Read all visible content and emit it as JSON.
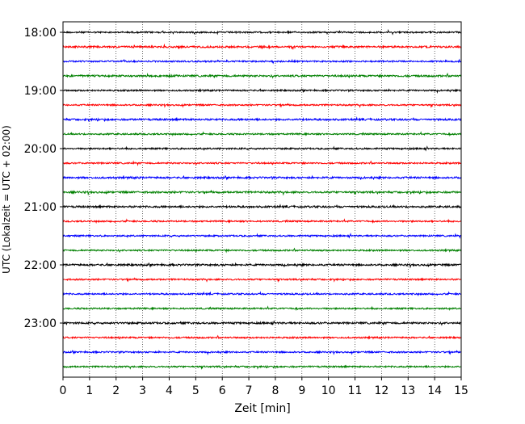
{
  "chart_data": {
    "type": "line",
    "title": "",
    "xlabel": "Zeit  [min]",
    "ylabel": "UTC (Lokalzeit = UTC + 02:00)",
    "xlim": [
      0,
      15
    ],
    "x_ticks": [
      "0",
      "1",
      "2",
      "3",
      "4",
      "5",
      "6",
      "7",
      "8",
      "9",
      "10",
      "11",
      "12",
      "13",
      "14",
      "15"
    ],
    "y_ticks": [
      "18:00",
      "19:00",
      "20:00",
      "21:00",
      "22:00",
      "23:00"
    ],
    "y_range": [
      "18:00",
      "24:00"
    ],
    "trace_interval_minutes": 15,
    "grid": "vertical dotted lines at each minute",
    "colors": [
      "#000000",
      "#ff0000",
      "#0000ff",
      "#008000"
    ],
    "series": [
      {
        "start": "18:00",
        "color": "#000000",
        "amplitude": 0.05
      },
      {
        "start": "18:15",
        "color": "#ff0000",
        "amplitude": 0.06
      },
      {
        "start": "18:30",
        "color": "#0000ff",
        "amplitude": 0.05
      },
      {
        "start": "18:45",
        "color": "#008000",
        "amplitude": 0.06
      },
      {
        "start": "19:00",
        "color": "#000000",
        "amplitude": 0.05
      },
      {
        "start": "19:15",
        "color": "#ff0000",
        "amplitude": 0.05
      },
      {
        "start": "19:30",
        "color": "#0000ff",
        "amplitude": 0.06
      },
      {
        "start": "19:45",
        "color": "#008000",
        "amplitude": 0.05
      },
      {
        "start": "20:00",
        "color": "#000000",
        "amplitude": 0.05
      },
      {
        "start": "20:15",
        "color": "#ff0000",
        "amplitude": 0.05
      },
      {
        "start": "20:30",
        "color": "#0000ff",
        "amplitude": 0.06
      },
      {
        "start": "20:45",
        "color": "#008000",
        "amplitude": 0.06
      },
      {
        "start": "21:00",
        "color": "#000000",
        "amplitude": 0.06
      },
      {
        "start": "21:15",
        "color": "#ff0000",
        "amplitude": 0.05
      },
      {
        "start": "21:30",
        "color": "#0000ff",
        "amplitude": 0.05
      },
      {
        "start": "21:45",
        "color": "#008000",
        "amplitude": 0.05
      },
      {
        "start": "22:00",
        "color": "#000000",
        "amplitude": 0.06
      },
      {
        "start": "22:15",
        "color": "#ff0000",
        "amplitude": 0.05
      },
      {
        "start": "22:30",
        "color": "#0000ff",
        "amplitude": 0.05
      },
      {
        "start": "22:45",
        "color": "#008000",
        "amplitude": 0.05
      },
      {
        "start": "23:00",
        "color": "#000000",
        "amplitude": 0.06
      },
      {
        "start": "23:15",
        "color": "#ff0000",
        "amplitude": 0.05
      },
      {
        "start": "23:30",
        "color": "#0000ff",
        "amplitude": 0.05
      },
      {
        "start": "23:45",
        "color": "#008000",
        "amplitude": 0.05
      }
    ]
  }
}
